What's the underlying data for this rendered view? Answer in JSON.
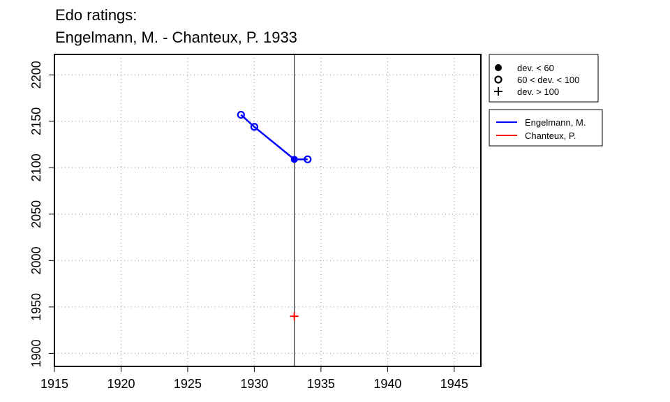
{
  "chart_data": {
    "type": "scatter",
    "title": "Edo ratings:",
    "subtitle": "Engelmann, M. - Chanteux, P. 1933",
    "xlabel": "",
    "ylabel": "",
    "xlim": [
      1915,
      1947
    ],
    "ylim": [
      1886,
      2222
    ],
    "x_ticks": [
      1915,
      1920,
      1925,
      1930,
      1935,
      1940,
      1945
    ],
    "y_ticks": [
      1900,
      1950,
      2000,
      2050,
      2100,
      2150,
      2200
    ],
    "grid": true,
    "reference_line_x": 1933,
    "series": [
      {
        "name": "Engelmann, M.",
        "color": "#0000ff",
        "connected": true,
        "points": [
          {
            "x": 1929,
            "y": 2157,
            "marker": "open-circle"
          },
          {
            "x": 1930,
            "y": 2144,
            "marker": "open-circle"
          },
          {
            "x": 1933,
            "y": 2109,
            "marker": "filled-circle"
          },
          {
            "x": 1934,
            "y": 2109,
            "marker": "open-circle"
          }
        ]
      },
      {
        "name": "Chanteux, P.",
        "color": "#ff0000",
        "connected": false,
        "points": [
          {
            "x": 1933,
            "y": 1940,
            "marker": "plus"
          }
        ]
      }
    ],
    "marker_legend": {
      "placement": "top-right",
      "items": [
        {
          "marker": "filled-circle",
          "label": "dev. < 60"
        },
        {
          "marker": "open-circle",
          "label": "60 < dev. < 100"
        },
        {
          "marker": "plus",
          "label": "dev. > 100"
        }
      ]
    },
    "series_legend": {
      "placement": "right"
    }
  }
}
